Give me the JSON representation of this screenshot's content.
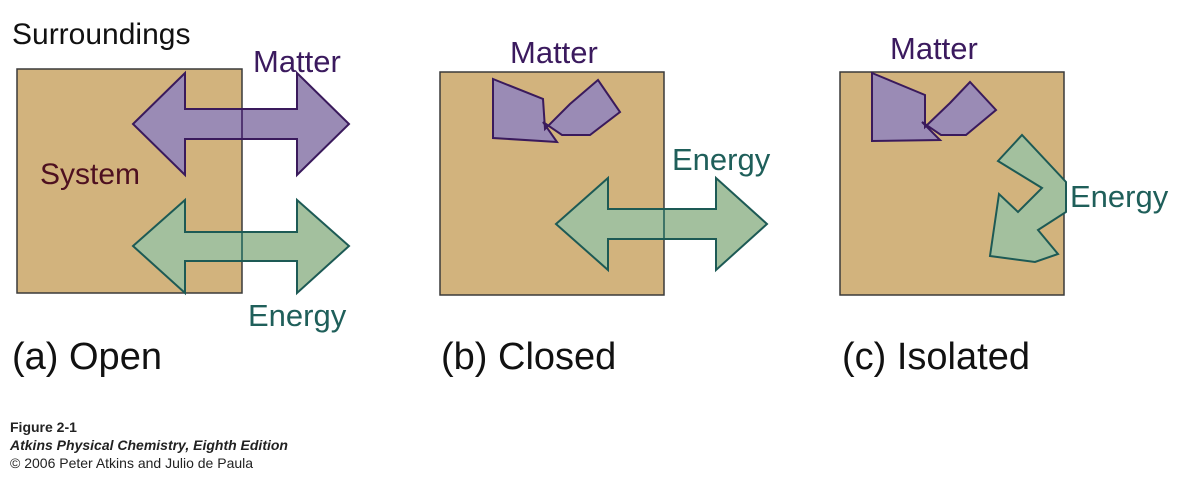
{
  "colors": {
    "system_fill": "#d2b37d",
    "system_border": "#3a3a3a",
    "matter_fill": "#9a8bb5",
    "matter_stroke": "#3a1a5c",
    "energy_fill": "#a3c09e",
    "energy_stroke": "#1d5a55",
    "matter_text": "#3b1a5e",
    "energy_text": "#1f5f5a",
    "system_text": "#4e1020"
  },
  "labels": {
    "surroundings": "Surroundings",
    "system": "System",
    "matter": "Matter",
    "energy": "Energy"
  },
  "panels": [
    {
      "caption": "(a) Open",
      "matter": "exchanged",
      "energy": "exchanged"
    },
    {
      "caption": "(b) Closed",
      "matter": "not exchanged",
      "energy": "exchanged"
    },
    {
      "caption": "(c) Isolated",
      "matter": "not exchanged",
      "energy": "not exchanged"
    }
  ],
  "footer": {
    "figure": "Figure 2-1",
    "book": "Atkins Physical Chemistry, Eighth Edition",
    "copyright": "© 2006 Peter Atkins and Julio de Paula"
  }
}
